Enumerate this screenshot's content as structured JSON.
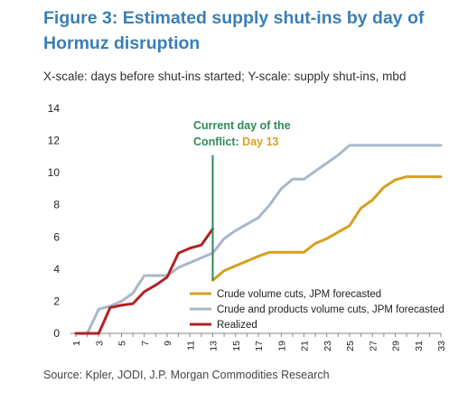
{
  "figure": {
    "title": "Figure 3: Estimated supply shut-ins by day of Hormuz disruption",
    "subtitle": "X-scale: days before shut-ins started; Y-scale: supply shut-ins, mbd",
    "source": "Source: Kpler, JODI, J.P. Morgan Commodities Research"
  },
  "chart_data": {
    "type": "line",
    "title": "",
    "xlabel": "",
    "ylabel": "",
    "xlim": [
      1,
      33
    ],
    "ylim": [
      0,
      14
    ],
    "yticks": [
      0,
      2,
      4,
      6,
      8,
      10,
      12,
      14
    ],
    "xticks": [
      1,
      3,
      5,
      7,
      9,
      11,
      13,
      15,
      17,
      19,
      21,
      23,
      25,
      27,
      29,
      31,
      33
    ],
    "grid": false,
    "legend_position": "bottom-right",
    "annotation": {
      "text_line1": "Current day of the",
      "text_line2_prefix": "Conflict: ",
      "text_line2_highlight": "Day 13",
      "x": 13,
      "line_color": "#2e8b57",
      "text_color": "#2e8b57",
      "highlight_color": "#e0a020"
    },
    "series": [
      {
        "name": "Crude volume cuts, JPM forecasted",
        "color": "#d4a020",
        "x": [
          13,
          14,
          15,
          16,
          17,
          18,
          19,
          20,
          21,
          22,
          23,
          24,
          25,
          26,
          27,
          28,
          29,
          30,
          31,
          32,
          33
        ],
        "y": [
          3.3,
          3.9,
          4.2,
          4.5,
          4.8,
          5.05,
          5.05,
          5.05,
          5.05,
          5.6,
          5.9,
          6.3,
          6.7,
          7.8,
          8.3,
          9.1,
          9.55,
          9.75,
          9.75,
          9.75,
          9.75
        ]
      },
      {
        "name": "Crude and products volume cuts, JPM forecasted",
        "color": "#a9b8c9",
        "x": [
          1,
          2,
          3,
          4,
          5,
          6,
          7,
          8,
          9,
          10,
          11,
          12,
          13,
          14,
          15,
          16,
          17,
          18,
          19,
          20,
          21,
          22,
          23,
          24,
          25,
          26,
          27,
          28,
          29,
          30,
          31,
          32,
          33
        ],
        "y": [
          0,
          0,
          1.5,
          1.7,
          2.0,
          2.5,
          3.6,
          3.6,
          3.6,
          4.1,
          4.4,
          4.7,
          5.0,
          5.9,
          6.4,
          6.8,
          7.2,
          8.0,
          9.0,
          9.6,
          9.6,
          10.1,
          10.6,
          11.1,
          11.7,
          11.7,
          11.7,
          11.7,
          11.7,
          11.7,
          11.7,
          11.7,
          11.7
        ]
      },
      {
        "name": "Realized",
        "color": "#b22222",
        "x": [
          1,
          2,
          3,
          4,
          5,
          6,
          7,
          8,
          9,
          10,
          11,
          12,
          13
        ],
        "y": [
          0,
          0,
          0,
          1.6,
          1.75,
          1.85,
          2.6,
          3.0,
          3.5,
          5.0,
          5.3,
          5.5,
          6.5
        ]
      }
    ]
  }
}
